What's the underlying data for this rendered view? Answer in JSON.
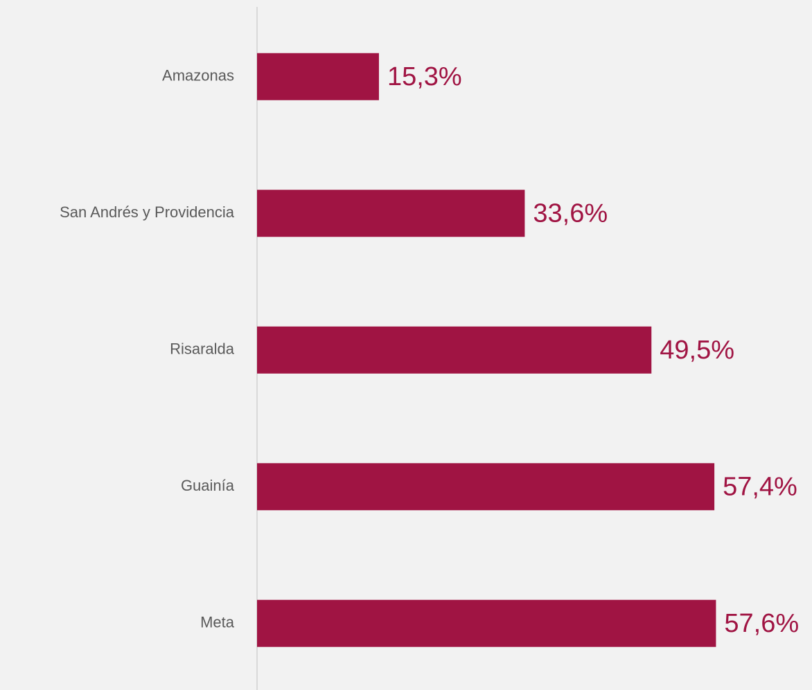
{
  "chart_data": {
    "type": "bar",
    "orientation": "horizontal",
    "categories": [
      "Amazonas",
      "San Andrés y Providencia",
      "Risaralda",
      "Guainía",
      "Meta"
    ],
    "values": [
      15.3,
      33.6,
      49.5,
      57.4,
      57.6
    ],
    "value_labels": [
      "15,3%",
      "33,6%",
      "49,5%",
      "57,4%",
      "57,6%"
    ],
    "color": "#a01443"
  }
}
